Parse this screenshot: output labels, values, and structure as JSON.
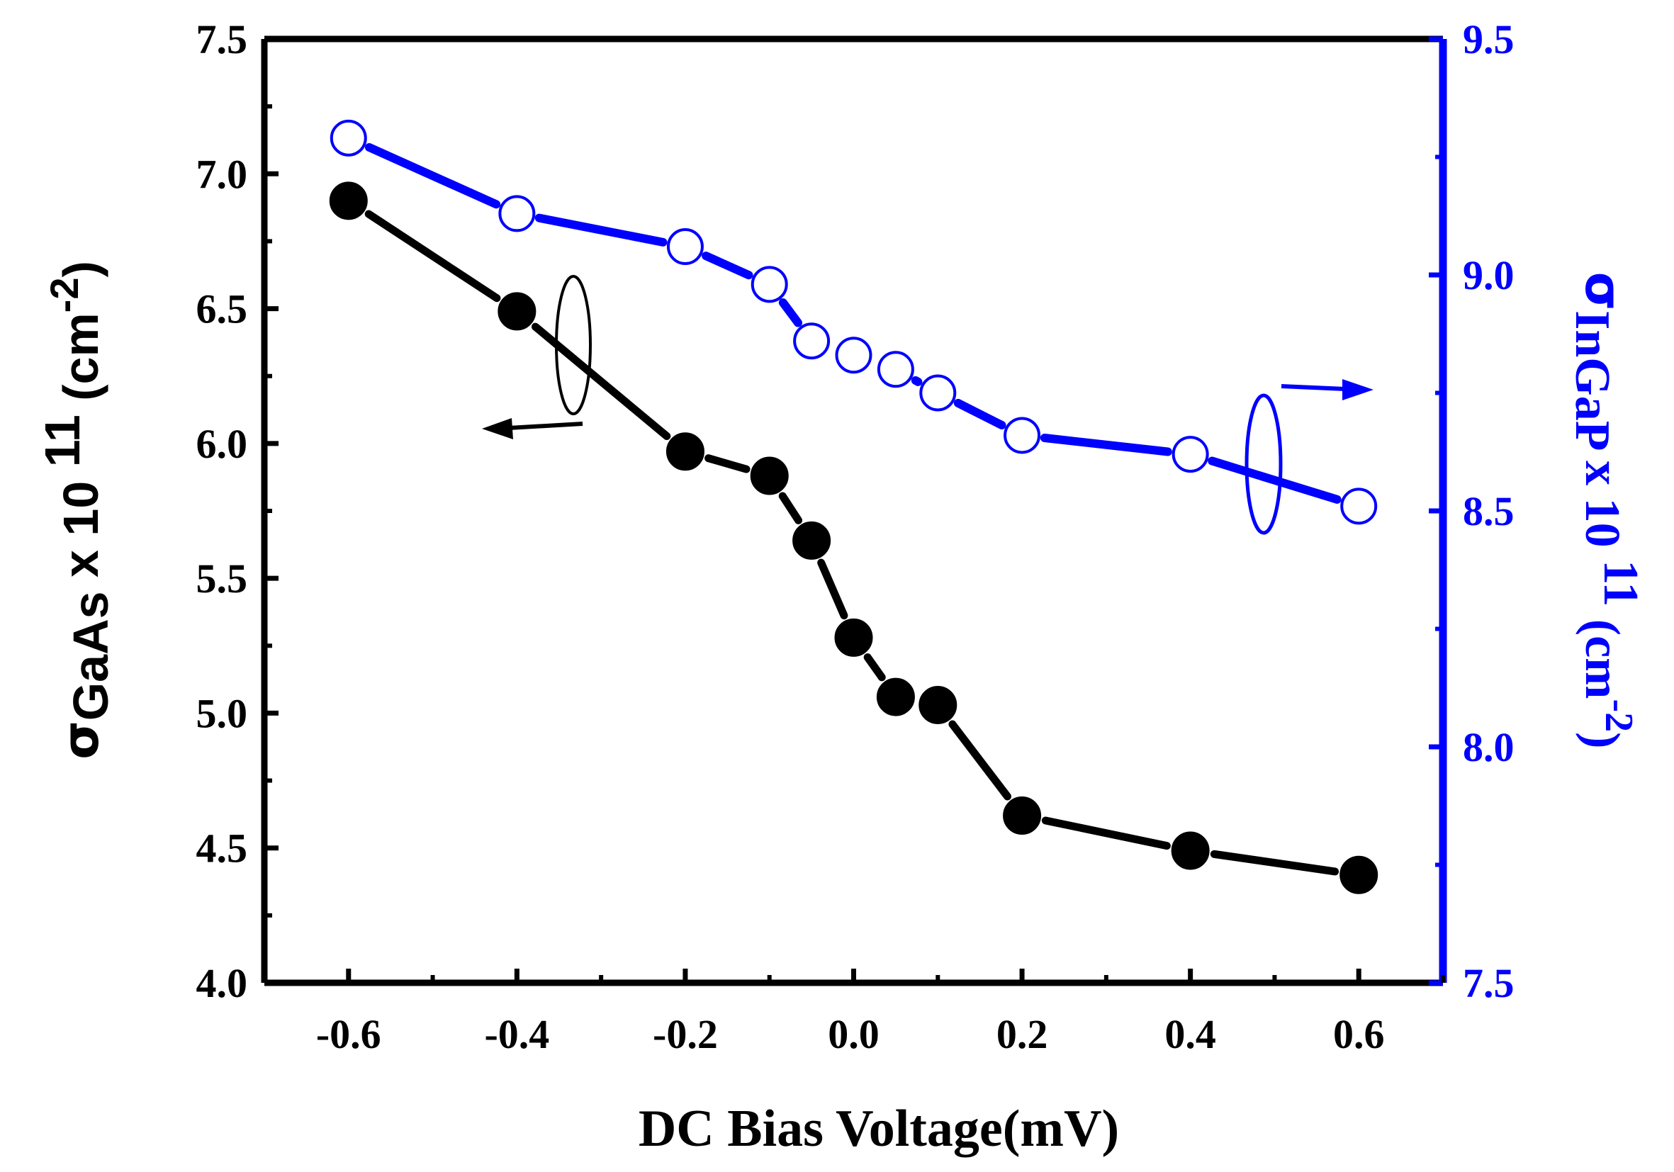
{
  "chart_data": {
    "type": "line",
    "title": "",
    "xlabel": "DC Bias Voltage(mV)",
    "x": [
      -0.6,
      -0.4,
      -0.2,
      -0.1,
      -0.05,
      0.0,
      0.05,
      0.1,
      0.2,
      0.4,
      0.6
    ],
    "xlim": [
      -0.7,
      0.7
    ],
    "xticks": [
      -0.6,
      -0.4,
      -0.2,
      0.0,
      0.2,
      0.4,
      0.6
    ],
    "xtick_labels": [
      "-0.6",
      "-0.4",
      "-0.2",
      "0.0",
      "0.2",
      "0.4",
      "0.6"
    ],
    "y_left": {
      "label": "σGaAs x 10 11 (cm-2)",
      "label_sigma": "σ",
      "label_sub": "GaAs",
      "label_mid": " x 10 ",
      "label_exp": "11",
      "label_unit_open": " (cm",
      "label_unit_exp": "-2",
      "label_unit_close": ")",
      "lim": [
        4.0,
        7.5
      ],
      "ticks": [
        4.0,
        4.5,
        5.0,
        5.5,
        6.0,
        6.5,
        7.0,
        7.5
      ],
      "tick_labels": [
        "4.0",
        "4.5",
        "5.0",
        "5.5",
        "6.0",
        "6.5",
        "7.0",
        "7.5"
      ],
      "color": "#000000"
    },
    "y_right": {
      "label": "σInGaP x 10 11 (cm-2)",
      "label_sigma": "σ",
      "label_sub": "InGaP",
      "label_mid": " x 10 ",
      "label_exp": "11",
      "label_unit_open": " (cm",
      "label_unit_exp": "-2",
      "label_unit_close": ")",
      "lim": [
        7.5,
        9.5
      ],
      "ticks": [
        7.5,
        8.0,
        8.5,
        9.0,
        9.5
      ],
      "tick_labels": [
        "7.5",
        "8.0",
        "8.5",
        "9.0",
        "9.5"
      ],
      "color": "#0000ff"
    },
    "series": [
      {
        "name": "σGaAs",
        "axis": "left",
        "marker": "filled-circle",
        "color": "#000000",
        "values": [
          6.9,
          6.49,
          5.97,
          5.88,
          5.64,
          5.28,
          5.06,
          5.03,
          4.62,
          4.49,
          4.4
        ]
      },
      {
        "name": "σInGaP",
        "axis": "right",
        "marker": "open-circle",
        "color": "#0000ff",
        "values": [
          9.29,
          9.13,
          9.06,
          8.98,
          8.86,
          8.83,
          8.8,
          8.75,
          8.66,
          8.62,
          8.51
        ]
      }
    ],
    "annotations": [
      {
        "type": "axis-indicator",
        "series": "σGaAs",
        "points_to": "left axis"
      },
      {
        "type": "axis-indicator",
        "series": "σInGaP",
        "points_to": "right axis"
      }
    ],
    "grid": false
  }
}
